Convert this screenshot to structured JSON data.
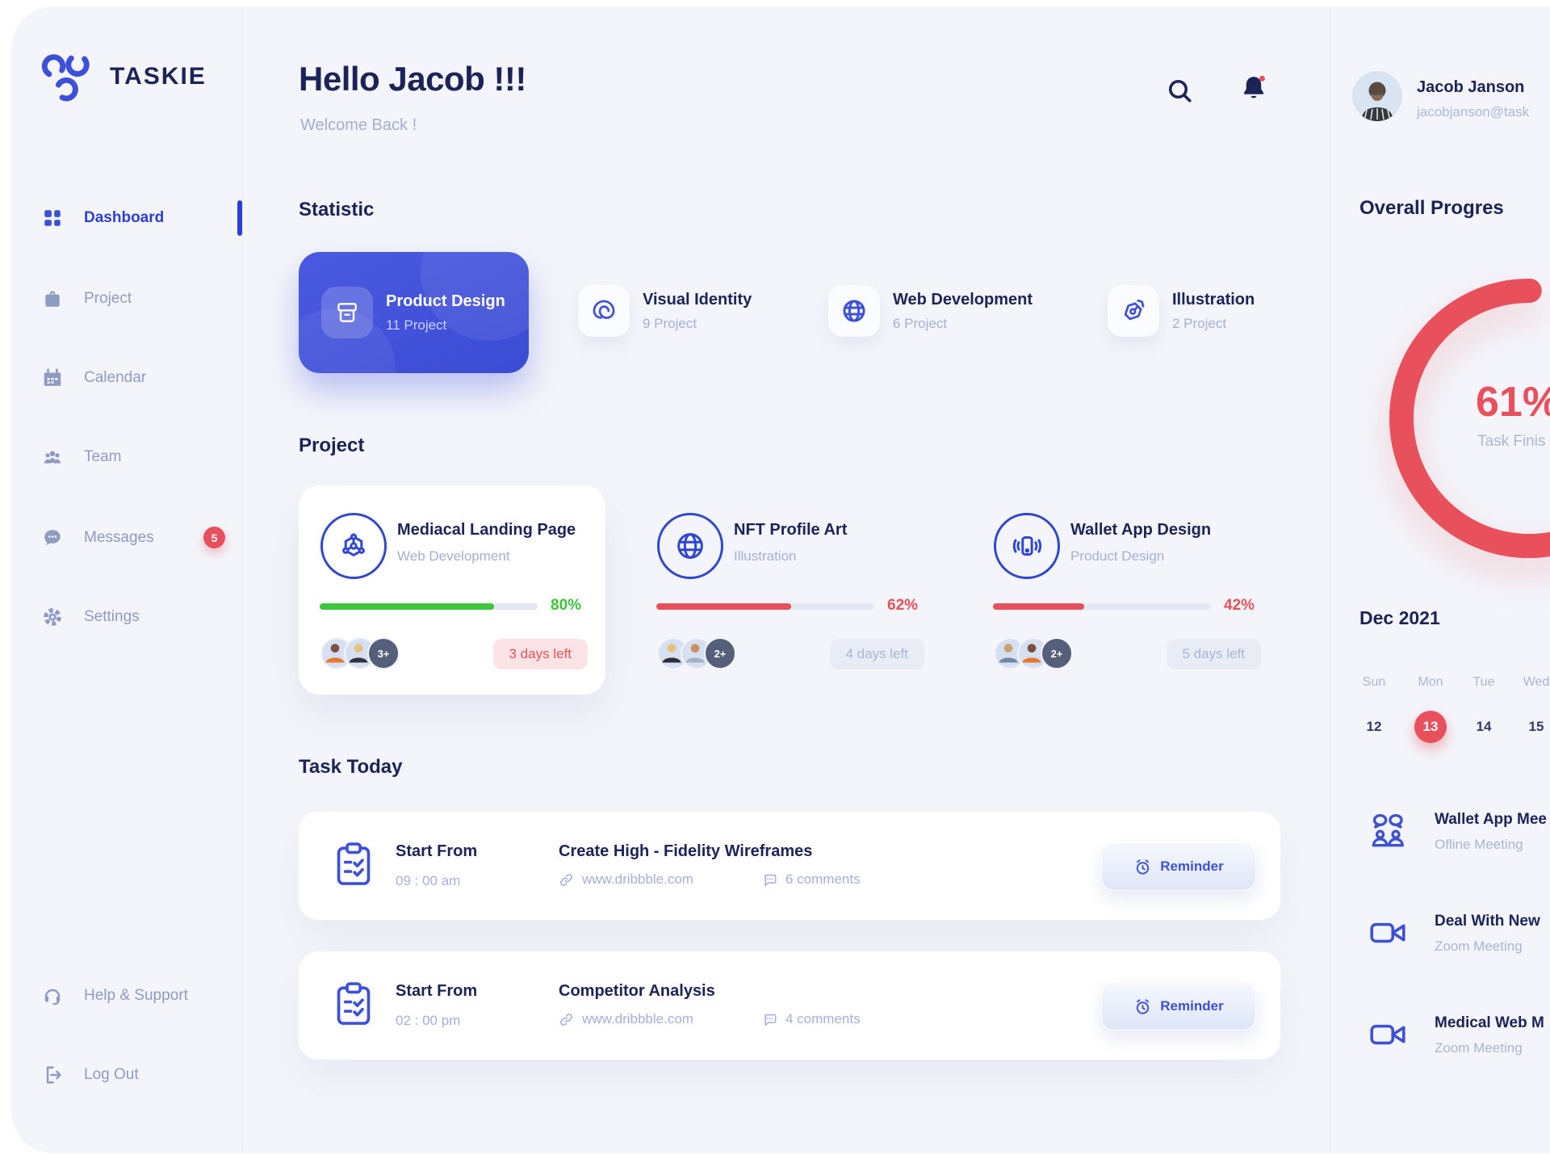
{
  "brand": {
    "name": "TASKIE"
  },
  "sidebar": {
    "items": [
      {
        "label": "Dashboard",
        "icon": "grid-icon",
        "active": true
      },
      {
        "label": "Project",
        "icon": "briefcase-icon"
      },
      {
        "label": "Calendar",
        "icon": "calendar-icon"
      },
      {
        "label": "Team",
        "icon": "team-icon"
      },
      {
        "label": "Messages",
        "icon": "chat-icon",
        "badge": "5"
      },
      {
        "label": "Settings",
        "icon": "gear-icon"
      }
    ],
    "footer_items": [
      {
        "label": "Help & Support",
        "icon": "headset-icon"
      },
      {
        "label": "Log Out",
        "icon": "logout-icon"
      }
    ]
  },
  "header": {
    "greeting": "Hello Jacob !!!",
    "subtitle": "Welcome Back !"
  },
  "statistic": {
    "title": "Statistic",
    "cards": [
      {
        "title": "Product Design",
        "count": "11 Project",
        "icon": "archive-box-icon",
        "highlight": true
      },
      {
        "title": "Visual Identity",
        "count": "9 Project",
        "icon": "spiral-icon"
      },
      {
        "title": "Web Development",
        "count": "6 Project",
        "icon": "globe-icon"
      },
      {
        "title": "Illustration",
        "count": "2 Project",
        "icon": "pen-tool-icon"
      }
    ]
  },
  "projects": {
    "title": "Project",
    "cards": [
      {
        "title": "Mediacal Landing Page",
        "category": "Web Development",
        "icon": "molecule-icon",
        "progress": 80,
        "progress_label": "80%",
        "color": "#3EC53E",
        "days_left": "3 days left",
        "days_style": "danger",
        "extra": "3+"
      },
      {
        "title": "NFT Profile Art",
        "category": "Illustration",
        "icon": "globe-wire-icon",
        "progress": 62,
        "progress_label": "62%",
        "color": "#E8505B",
        "days_left": "4 days left",
        "days_style": "neutral",
        "extra": "2+"
      },
      {
        "title": "Wallet App Design",
        "category": "Product Design",
        "icon": "phone-vibrate-icon",
        "progress": 42,
        "progress_label": "42%",
        "color": "#E8505B",
        "days_left": "5 days left",
        "days_style": "neutral",
        "extra": "2+"
      }
    ]
  },
  "tasks": {
    "title": "Task Today",
    "items": [
      {
        "start_label": "Start From",
        "time": "09 : 00 am",
        "title": "Create High - Fidelity Wireframes",
        "link": "www.dribbble.com",
        "comments": "6 comments",
        "button": "Reminder"
      },
      {
        "start_label": "Start From",
        "time": "02 : 00 pm",
        "title": "Competitor Analysis",
        "link": "www.dribbble.com",
        "comments": "4 comments",
        "button": "Reminder"
      }
    ]
  },
  "profile": {
    "name": "Jacob Janson",
    "email": "jacobjanson@task"
  },
  "overall": {
    "title": "Overall Progres",
    "percent": "61%",
    "caption": "Task Finis"
  },
  "calendar": {
    "month": "Dec 2021",
    "days": [
      {
        "dow": "Sun",
        "date": "12",
        "selected": false
      },
      {
        "dow": "Mon",
        "date": "13",
        "selected": true
      },
      {
        "dow": "Tue",
        "date": "14",
        "selected": false
      },
      {
        "dow": "Wed",
        "date": "15",
        "selected": false
      }
    ]
  },
  "meetings": [
    {
      "title": "Wallet App Mee",
      "subtitle": "Ofline Meeting",
      "icon": "people-chat-icon"
    },
    {
      "title": "Deal With New",
      "subtitle": "Zoom Meeting",
      "icon": "video-camera-icon"
    },
    {
      "title": "Medical Web M",
      "subtitle": "Zoom Meeting",
      "icon": "video-camera-icon"
    }
  ],
  "colors": {
    "primary": "#3D50D8",
    "navy": "#1C2357",
    "muted": "#A5B1D4",
    "red": "#E8505B",
    "green": "#3EC53E"
  }
}
